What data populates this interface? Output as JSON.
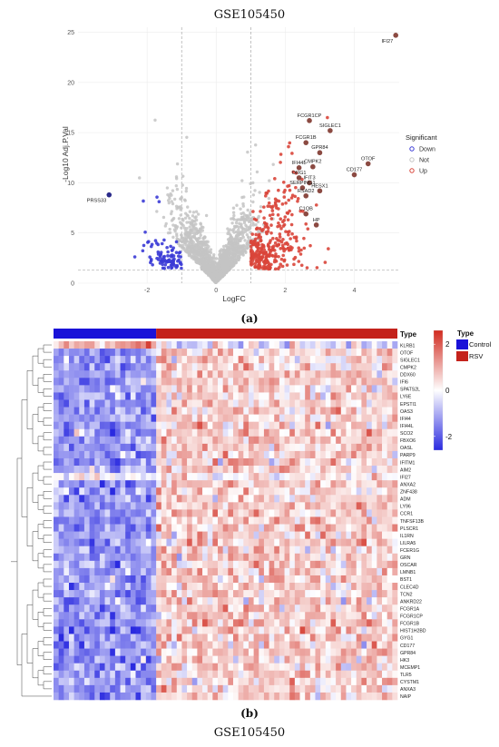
{
  "figure": {
    "top_title": "GSE105450",
    "panel_a_label": "(a)",
    "panel_b_label": "(b)",
    "bottom_title": "GSE105450"
  },
  "chart_data": [
    {
      "type": "scatter",
      "subtype": "volcano",
      "title": "",
      "xlabel": "LogFC",
      "ylabel": "-Log10 Adj.P.Val",
      "xlim": [
        -4,
        5.3
      ],
      "ylim": [
        0,
        25.5
      ],
      "x_ticks": [
        -2,
        0,
        2,
        4
      ],
      "y_ticks": [
        0,
        5,
        10,
        15,
        20,
        25
      ],
      "thresholds": {
        "logfc": [
          -1,
          1
        ],
        "neg_log10_p": 1.3
      },
      "grid": true,
      "legend": {
        "title": "Significant",
        "position": "right",
        "entries": [
          "Down",
          "Not",
          "Up"
        ]
      },
      "colors": {
        "Down": "#3b3bd6",
        "Not": "#c4c4c4",
        "Up": "#d9453a",
        "labeled_up": "#8b4a42",
        "labeled_down": "#2a2a8a"
      },
      "labeled_points": [
        {
          "label": "IFI27",
          "x": 5.2,
          "y": 24.7,
          "group": "Up"
        },
        {
          "label": "FCGR1CP",
          "x": 2.7,
          "y": 16.2,
          "group": "Up"
        },
        {
          "label": "SIGLEC1",
          "x": 3.3,
          "y": 15.2,
          "group": "Up"
        },
        {
          "label": "FCGR1B",
          "x": 2.6,
          "y": 14.0,
          "group": "Up"
        },
        {
          "label": "GPR84",
          "x": 3.0,
          "y": 13.0,
          "group": "Up"
        },
        {
          "label": "CMPK2",
          "x": 2.8,
          "y": 11.6,
          "group": "Up"
        },
        {
          "label": "IFI44L",
          "x": 2.4,
          "y": 11.5,
          "group": "Up"
        },
        {
          "label": "OTOF",
          "x": 4.4,
          "y": 11.9,
          "group": "Up"
        },
        {
          "label": "ORG1",
          "x": 2.4,
          "y": 10.5,
          "group": "Up"
        },
        {
          "label": "IFIT3",
          "x": 2.7,
          "y": 10.0,
          "group": "Up"
        },
        {
          "label": "CD177",
          "x": 4.0,
          "y": 10.8,
          "group": "Up"
        },
        {
          "label": "SERPING1",
          "x": 2.5,
          "y": 9.5,
          "group": "Up"
        },
        {
          "label": "HESX1",
          "x": 3.0,
          "y": 9.2,
          "group": "Up"
        },
        {
          "label": "RSAD2",
          "x": 2.6,
          "y": 8.7,
          "group": "Up"
        },
        {
          "label": "C1QB",
          "x": 2.6,
          "y": 6.9,
          "group": "Up"
        },
        {
          "label": "HP",
          "x": 2.9,
          "y": 5.8,
          "group": "Up"
        },
        {
          "label": "PRSS33",
          "x": -3.1,
          "y": 8.8,
          "group": "Down"
        }
      ]
    },
    {
      "type": "heatmap",
      "title": "",
      "annotation": {
        "name": "Type",
        "groups": [
          {
            "name": "Control",
            "count": 20,
            "color": "#1a12d8"
          },
          {
            "name": "RSV",
            "count": 47,
            "color": "#c4221b"
          }
        ]
      },
      "color_scale": {
        "ticks": [
          2,
          0,
          -2
        ],
        "high": "#d12a1f",
        "mid": "#ffffff",
        "low": "#2a2ae0"
      },
      "genes": [
        "KLRB1",
        "OTOF",
        "SIGLEC1",
        "CMPK2",
        "DDX60",
        "IFI6",
        "SPATS2L",
        "LY6E",
        "EPSTI1",
        "OAS3",
        "IFI44",
        "IFI44L",
        "SCO2",
        "FBXO6",
        "OASL",
        "PARP9",
        "IFITM1",
        "AIM2",
        "IFI27",
        "ANXA2",
        "ZNF438",
        "ADM",
        "LY96",
        "CCR1",
        "TNFSF13B",
        "PLSCR1",
        "IL1RN",
        "LILRA5",
        "FCER1G",
        "GRN",
        "OSCAR",
        "LMNB1",
        "BST1",
        "CLEC4D",
        "TCN2",
        "ANKRD22",
        "FCGR1A",
        "FCGR1CP",
        "FCGR1B",
        "HIST1H2BD",
        "GYG1",
        "CD177",
        "GPR84",
        "HK3",
        "MCEMP1",
        "TLR5",
        "CYSTM1",
        "ANXA3",
        "NAIP"
      ],
      "legend_type_title": "Type"
    }
  ]
}
